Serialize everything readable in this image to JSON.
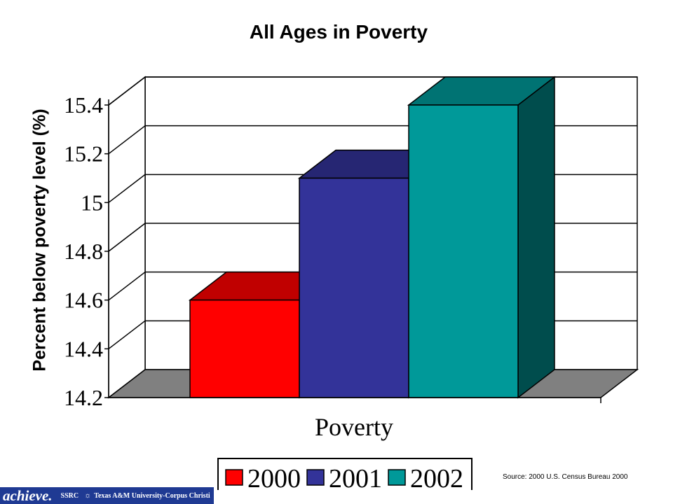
{
  "chart_data": {
    "type": "bar",
    "style": "3d",
    "title": "All Ages in Poverty",
    "xlabel": "Poverty",
    "ylabel": "Percent below poverty level (%)",
    "categories": [
      "Poverty"
    ],
    "series": [
      {
        "name": "2000",
        "values": [
          14.6
        ],
        "color": "#ff0000",
        "top_color": "#c00000",
        "side_color": "#800000"
      },
      {
        "name": "2001",
        "values": [
          15.1
        ],
        "color": "#333399",
        "top_color": "#262673",
        "side_color": "#1a1a55"
      },
      {
        "name": "2002",
        "values": [
          15.4
        ],
        "color": "#009999",
        "top_color": "#007373",
        "side_color": "#004d4d"
      }
    ],
    "ylim": [
      14.2,
      15.4
    ],
    "yticks": [
      "14.2",
      "14.4",
      "14.6",
      "14.8",
      "15",
      "15.2",
      "15.4"
    ],
    "grid": true,
    "legend_position": "bottom"
  },
  "source": "Source: 2000 U.S. Census Bureau 2000",
  "footer": {
    "logo": "achieve.",
    "ssrc": "SSRC",
    "institution": "Texas A&M University-Corpus Christi"
  },
  "colors": {
    "floor": "#808080",
    "footer_bg": "#1f3a93"
  }
}
